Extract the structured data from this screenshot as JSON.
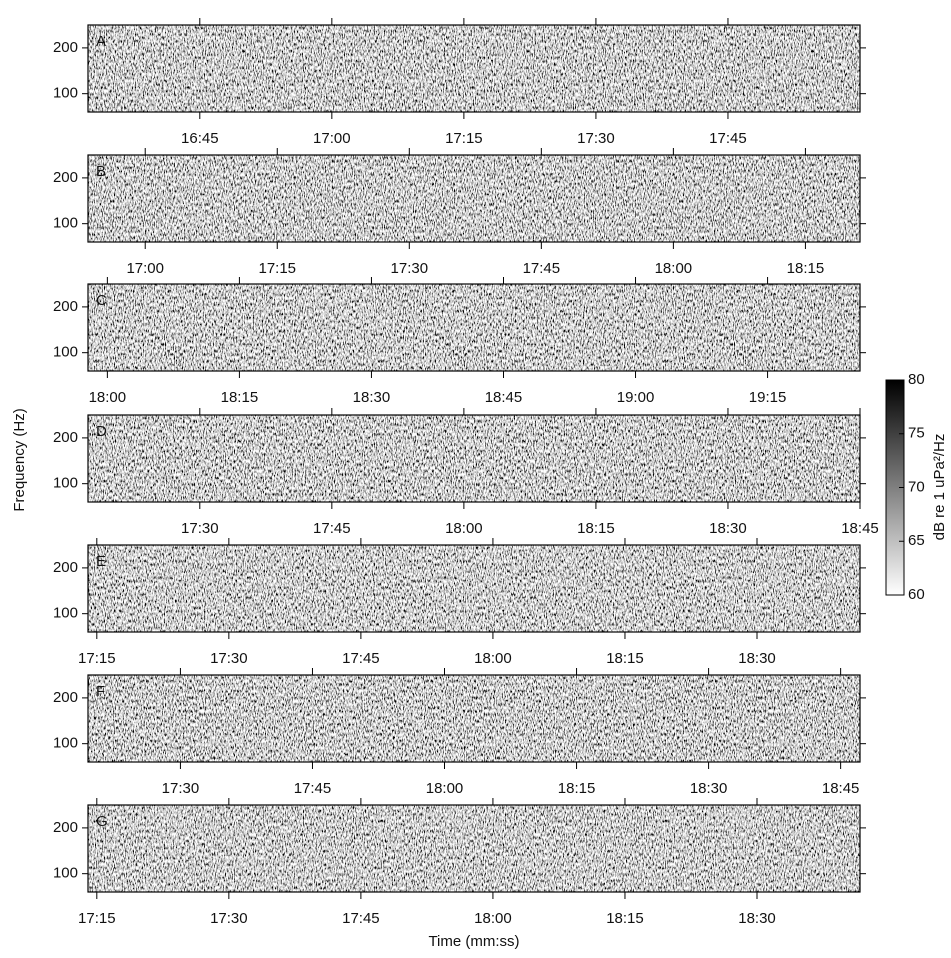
{
  "chart_data": [
    {
      "type": "spectrogram",
      "label": "A",
      "xlim": [
        992.3,
        1080
      ],
      "ylim": [
        60,
        250
      ],
      "yticks": [
        100,
        200
      ],
      "xticks": [
        {
          "value": 1005,
          "label": "16:45"
        },
        {
          "value": 1020,
          "label": "17:00"
        },
        {
          "value": 1035,
          "label": "17:15"
        },
        {
          "value": 1050,
          "label": "17:30"
        },
        {
          "value": 1065,
          "label": "17:45"
        }
      ]
    },
    {
      "type": "spectrogram",
      "label": "B",
      "xlim": [
        1013.5,
        1101.2
      ],
      "ylim": [
        60,
        250
      ],
      "yticks": [
        100,
        200
      ],
      "xticks": [
        {
          "value": 1020,
          "label": "17:00"
        },
        {
          "value": 1035,
          "label": "17:15"
        },
        {
          "value": 1050,
          "label": "17:30"
        },
        {
          "value": 1065,
          "label": "17:45"
        },
        {
          "value": 1080,
          "label": "18:00"
        },
        {
          "value": 1095,
          "label": "18:15"
        }
      ]
    },
    {
      "type": "spectrogram",
      "label": "C",
      "xlim": [
        1077.8,
        1165.5
      ],
      "ylim": [
        60,
        250
      ],
      "yticks": [
        100,
        200
      ],
      "xticks": [
        {
          "value": 1080,
          "label": "18:00"
        },
        {
          "value": 1095,
          "label": "18:15"
        },
        {
          "value": 1110,
          "label": "18:30"
        },
        {
          "value": 1125,
          "label": "18:45"
        },
        {
          "value": 1140,
          "label": "19:00"
        },
        {
          "value": 1155,
          "label": "19:15"
        }
      ]
    },
    {
      "type": "spectrogram",
      "label": "D",
      "xlim": [
        1037.3,
        1125
      ],
      "ylim": [
        60,
        250
      ],
      "yticks": [
        100,
        200
      ],
      "xticks": [
        {
          "value": 1050,
          "label": "17:30"
        },
        {
          "value": 1065,
          "label": "17:45"
        },
        {
          "value": 1080,
          "label": "18:00"
        },
        {
          "value": 1095,
          "label": "18:15"
        },
        {
          "value": 1110,
          "label": "18:30"
        },
        {
          "value": 1125,
          "label": "18:45"
        }
      ]
    },
    {
      "type": "spectrogram",
      "label": "E",
      "xlim": [
        1034,
        1121.7
      ],
      "ylim": [
        60,
        250
      ],
      "yticks": [
        100,
        200
      ],
      "xticks": [
        {
          "value": 1035,
          "label": "17:15"
        },
        {
          "value": 1050,
          "label": "17:30"
        },
        {
          "value": 1065,
          "label": "17:45"
        },
        {
          "value": 1080,
          "label": "18:00"
        },
        {
          "value": 1095,
          "label": "18:15"
        },
        {
          "value": 1110,
          "label": "18:30"
        }
      ]
    },
    {
      "type": "spectrogram",
      "label": "F",
      "xlim": [
        1039.5,
        1127.2
      ],
      "ylim": [
        60,
        250
      ],
      "yticks": [
        100,
        200
      ],
      "xticks": [
        {
          "value": 1050,
          "label": "17:30"
        },
        {
          "value": 1065,
          "label": "17:45"
        },
        {
          "value": 1080,
          "label": "18:00"
        },
        {
          "value": 1095,
          "label": "18:15"
        },
        {
          "value": 1110,
          "label": "18:30"
        },
        {
          "value": 1125,
          "label": "18:45"
        }
      ]
    },
    {
      "type": "spectrogram",
      "label": "G",
      "xlim": [
        1034,
        1121.7
      ],
      "ylim": [
        60,
        250
      ],
      "yticks": [
        100,
        200
      ],
      "xticks": [
        {
          "value": 1035,
          "label": "17:15"
        },
        {
          "value": 1050,
          "label": "17:30"
        },
        {
          "value": 1065,
          "label": "17:45"
        },
        {
          "value": 1080,
          "label": "18:00"
        },
        {
          "value": 1095,
          "label": "18:15"
        },
        {
          "value": 1110,
          "label": "18:30"
        }
      ]
    }
  ],
  "ylabel": "Frequency (Hz)",
  "xlabel": "Time (mm:ss)",
  "colorbar": {
    "label": "dB re 1 uPa²/Hz",
    "lim": [
      60,
      80
    ],
    "ticks": [
      60,
      65,
      70,
      75,
      80
    ],
    "colors": [
      "#ffffff",
      "#000000"
    ]
  }
}
